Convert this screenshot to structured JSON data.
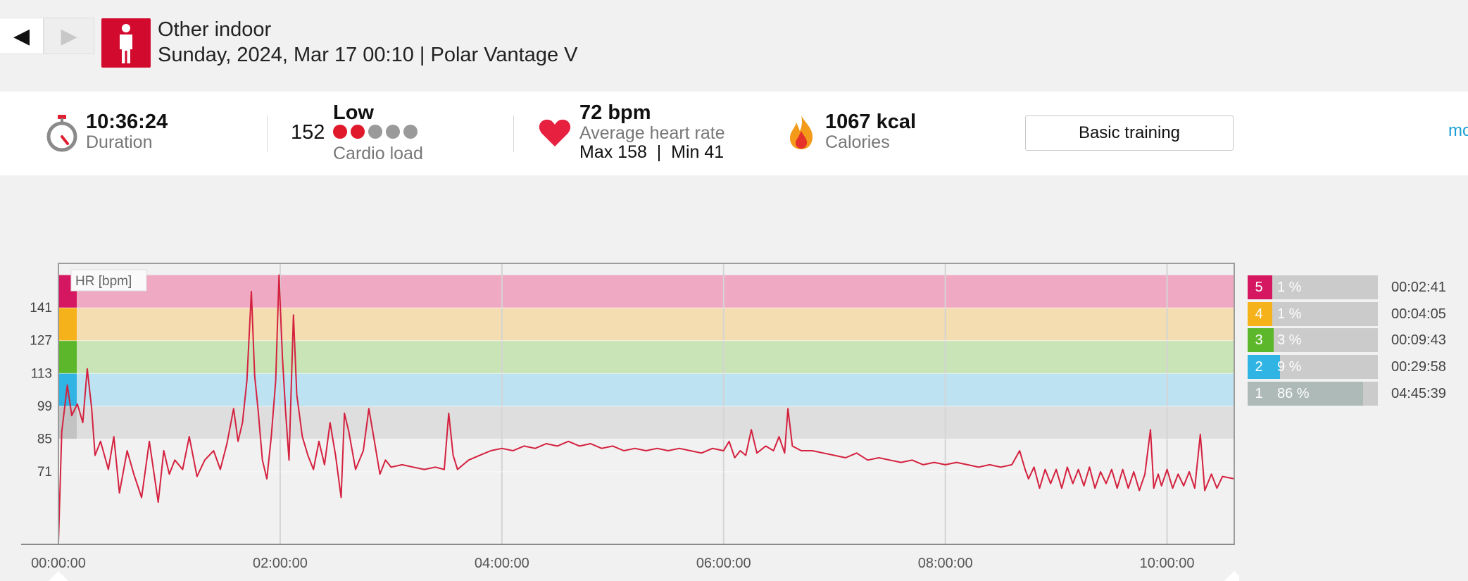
{
  "nav": {
    "prev_icon": "◀",
    "next_icon": "▶"
  },
  "header": {
    "sport": "Other indoor",
    "subtitle": "Sunday, 2024, Mar 17 00:10 | Polar Vantage V",
    "sport_icon": "person-standing-icon",
    "tile_color": "#d20a2e"
  },
  "stats": {
    "duration": {
      "value": "10:36:24",
      "label": "Duration",
      "icon": "stopwatch-icon"
    },
    "cardio": {
      "number": "152",
      "level": "Low",
      "label": "Cardio load",
      "filled_dots": 2,
      "total_dots": 5
    },
    "hr": {
      "value": "72 bpm",
      "label": "Average heart rate",
      "minmax": "Max 158  |  Min 41",
      "icon": "heart-icon"
    },
    "calories": {
      "value": "1067 kcal",
      "label": "Calories",
      "icon": "flame-icon"
    },
    "training_button": "Basic training",
    "more_link": "mo"
  },
  "chart_data": {
    "type": "line",
    "series_label": "HR [bpm]",
    "xlabel": "",
    "ylabel": "",
    "xlim_hours": [
      0,
      10.606
    ],
    "ylim_bpm": [
      40,
      160
    ],
    "x_ticks": [
      "00:00:00",
      "02:00:00",
      "04:00:00",
      "06:00:00",
      "08:00:00",
      "10:00:00"
    ],
    "x_tick_hours": [
      0,
      2,
      4,
      6,
      8,
      10
    ],
    "y_ticks": [
      141,
      127,
      113,
      99,
      85,
      71
    ],
    "zone_bands": [
      {
        "zone": 5,
        "from": 141,
        "to": 155,
        "color": "#f0a9c2"
      },
      {
        "zone": 4,
        "from": 127,
        "to": 141,
        "color": "#f4ddb1"
      },
      {
        "zone": 3,
        "from": 113,
        "to": 127,
        "color": "#c9e4b6"
      },
      {
        "zone": 2,
        "from": 99,
        "to": 113,
        "color": "#bde2f1"
      },
      {
        "zone": 1,
        "from": 85,
        "to": 99,
        "color": "#dedede"
      }
    ],
    "line_color": "#d4213f",
    "points": [
      [
        0.0,
        41
      ],
      [
        0.03,
        88
      ],
      [
        0.08,
        108
      ],
      [
        0.12,
        95
      ],
      [
        0.17,
        100
      ],
      [
        0.22,
        92
      ],
      [
        0.26,
        115
      ],
      [
        0.3,
        98
      ],
      [
        0.33,
        78
      ],
      [
        0.38,
        84
      ],
      [
        0.45,
        72
      ],
      [
        0.5,
        86
      ],
      [
        0.55,
        62
      ],
      [
        0.62,
        80
      ],
      [
        0.68,
        70
      ],
      [
        0.75,
        60
      ],
      [
        0.82,
        84
      ],
      [
        0.9,
        58
      ],
      [
        0.95,
        80
      ],
      [
        1.0,
        70
      ],
      [
        1.05,
        76
      ],
      [
        1.12,
        72
      ],
      [
        1.18,
        86
      ],
      [
        1.25,
        69
      ],
      [
        1.32,
        76
      ],
      [
        1.4,
        80
      ],
      [
        1.46,
        72
      ],
      [
        1.52,
        83
      ],
      [
        1.58,
        98
      ],
      [
        1.62,
        84
      ],
      [
        1.66,
        92
      ],
      [
        1.7,
        110
      ],
      [
        1.74,
        148
      ],
      [
        1.77,
        112
      ],
      [
        1.8,
        98
      ],
      [
        1.84,
        76
      ],
      [
        1.88,
        68
      ],
      [
        1.92,
        86
      ],
      [
        1.96,
        110
      ],
      [
        1.99,
        155
      ],
      [
        2.02,
        120
      ],
      [
        2.05,
        96
      ],
      [
        2.08,
        76
      ],
      [
        2.12,
        138
      ],
      [
        2.15,
        104
      ],
      [
        2.2,
        86
      ],
      [
        2.25,
        78
      ],
      [
        2.3,
        72
      ],
      [
        2.35,
        84
      ],
      [
        2.4,
        74
      ],
      [
        2.45,
        92
      ],
      [
        2.5,
        78
      ],
      [
        2.55,
        60
      ],
      [
        2.58,
        96
      ],
      [
        2.62,
        88
      ],
      [
        2.68,
        72
      ],
      [
        2.75,
        80
      ],
      [
        2.8,
        98
      ],
      [
        2.85,
        84
      ],
      [
        2.9,
        70
      ],
      [
        2.95,
        76
      ],
      [
        3.0,
        73
      ],
      [
        3.1,
        74
      ],
      [
        3.2,
        73
      ],
      [
        3.3,
        72
      ],
      [
        3.4,
        73
      ],
      [
        3.48,
        72
      ],
      [
        3.52,
        96
      ],
      [
        3.56,
        78
      ],
      [
        3.6,
        72
      ],
      [
        3.65,
        74
      ],
      [
        3.7,
        76
      ],
      [
        3.8,
        78
      ],
      [
        3.9,
        80
      ],
      [
        4.0,
        81
      ],
      [
        4.1,
        80
      ],
      [
        4.2,
        82
      ],
      [
        4.3,
        81
      ],
      [
        4.4,
        83
      ],
      [
        4.5,
        82
      ],
      [
        4.6,
        84
      ],
      [
        4.7,
        82
      ],
      [
        4.8,
        83
      ],
      [
        4.9,
        81
      ],
      [
        5.0,
        82
      ],
      [
        5.1,
        80
      ],
      [
        5.2,
        81
      ],
      [
        5.3,
        80
      ],
      [
        5.4,
        81
      ],
      [
        5.5,
        80
      ],
      [
        5.6,
        81
      ],
      [
        5.7,
        80
      ],
      [
        5.8,
        79
      ],
      [
        5.9,
        81
      ],
      [
        6.0,
        80
      ],
      [
        6.05,
        84
      ],
      [
        6.1,
        77
      ],
      [
        6.15,
        80
      ],
      [
        6.2,
        78
      ],
      [
        6.25,
        89
      ],
      [
        6.3,
        79
      ],
      [
        6.38,
        82
      ],
      [
        6.45,
        80
      ],
      [
        6.5,
        86
      ],
      [
        6.55,
        79
      ],
      [
        6.58,
        98
      ],
      [
        6.62,
        82
      ],
      [
        6.7,
        80
      ],
      [
        6.8,
        80
      ],
      [
        6.9,
        79
      ],
      [
        7.0,
        78
      ],
      [
        7.1,
        77
      ],
      [
        7.2,
        79
      ],
      [
        7.3,
        76
      ],
      [
        7.4,
        77
      ],
      [
        7.5,
        76
      ],
      [
        7.6,
        75
      ],
      [
        7.7,
        76
      ],
      [
        7.8,
        74
      ],
      [
        7.9,
        75
      ],
      [
        8.0,
        74
      ],
      [
        8.1,
        75
      ],
      [
        8.2,
        74
      ],
      [
        8.3,
        73
      ],
      [
        8.4,
        74
      ],
      [
        8.5,
        73
      ],
      [
        8.6,
        74
      ],
      [
        8.67,
        80
      ],
      [
        8.72,
        72
      ],
      [
        8.75,
        68
      ],
      [
        8.8,
        73
      ],
      [
        8.85,
        64
      ],
      [
        8.9,
        72
      ],
      [
        8.95,
        66
      ],
      [
        9.0,
        72
      ],
      [
        9.05,
        64
      ],
      [
        9.1,
        73
      ],
      [
        9.15,
        66
      ],
      [
        9.2,
        72
      ],
      [
        9.25,
        65
      ],
      [
        9.3,
        73
      ],
      [
        9.35,
        64
      ],
      [
        9.4,
        71
      ],
      [
        9.45,
        66
      ],
      [
        9.5,
        72
      ],
      [
        9.55,
        64
      ],
      [
        9.6,
        72
      ],
      [
        9.65,
        64
      ],
      [
        9.7,
        71
      ],
      [
        9.75,
        63
      ],
      [
        9.8,
        70
      ],
      [
        9.85,
        89
      ],
      [
        9.88,
        64
      ],
      [
        9.92,
        70
      ],
      [
        9.95,
        65
      ],
      [
        10.0,
        72
      ],
      [
        10.05,
        64
      ],
      [
        10.1,
        70
      ],
      [
        10.15,
        65
      ],
      [
        10.2,
        71
      ],
      [
        10.25,
        64
      ],
      [
        10.3,
        87
      ],
      [
        10.34,
        63
      ],
      [
        10.4,
        70
      ],
      [
        10.45,
        64
      ],
      [
        10.5,
        69
      ],
      [
        10.606,
        68
      ]
    ]
  },
  "zones": [
    {
      "num": "5",
      "pct_text": "1 %",
      "pct": 1,
      "time": "00:02:41",
      "color": "#d51660"
    },
    {
      "num": "4",
      "pct_text": "1 %",
      "pct": 1,
      "time": "00:04:05",
      "color": "#f6b21a"
    },
    {
      "num": "3",
      "pct_text": "3 %",
      "pct": 3,
      "time": "00:09:43",
      "color": "#5cb72b"
    },
    {
      "num": "2",
      "pct_text": "9 %",
      "pct": 9,
      "time": "00:29:58",
      "color": "#2fb4e3"
    },
    {
      "num": "1",
      "pct_text": "86 %",
      "pct": 86,
      "time": "04:45:39",
      "color": "#aebab8"
    }
  ]
}
